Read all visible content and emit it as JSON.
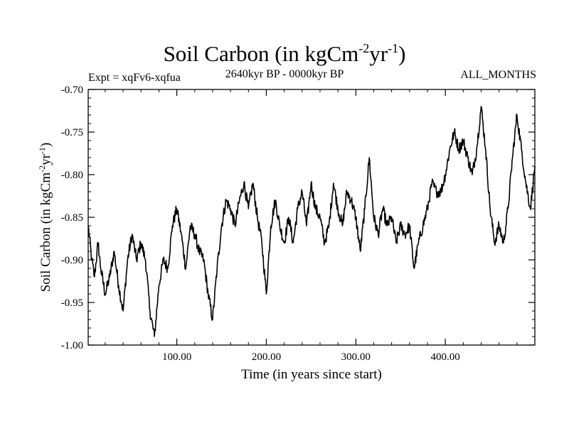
{
  "chart_data": {
    "type": "line",
    "title": {
      "prefix": "Soil Carbon (in kgCm",
      "sup1": "-2",
      "mid": "yr",
      "sup2": "-1",
      "suffix": ")"
    },
    "experiment_label": "Expt = xqFv6-xqfua",
    "period_label": "2640kyr BP - 0000kyr BP",
    "months_label": "ALL_MONTHS",
    "xlabel": "Time (in years since start)",
    "ylabel": {
      "prefix": "Soil Carbon (in kgCm",
      "sup1": "-2",
      "mid": "yr",
      "sup2": "-1",
      "suffix": ")"
    },
    "xlim": [
      1,
      500
    ],
    "ylim": [
      -1.0,
      -0.7
    ],
    "x_ticks": [
      {
        "value": 100,
        "label": "100.00"
      },
      {
        "value": 200,
        "label": "200.00"
      },
      {
        "value": 300,
        "label": "300.00"
      },
      {
        "value": 400,
        "label": "400.00"
      }
    ],
    "y_ticks": [
      {
        "value": -0.7,
        "label": "-0.70"
      },
      {
        "value": -0.75,
        "label": "-0.75"
      },
      {
        "value": -0.8,
        "label": "-0.80"
      },
      {
        "value": -0.85,
        "label": "-0.85"
      },
      {
        "value": -0.9,
        "label": "-0.90"
      },
      {
        "value": -0.95,
        "label": "-0.95"
      },
      {
        "value": -1.0,
        "label": "-1.00"
      }
    ],
    "line_color": "#000000",
    "series": [
      {
        "name": "Soil Carbon",
        "x": [
          1,
          5,
          8,
          12,
          15,
          20,
          25,
          30,
          35,
          40,
          45,
          50,
          55,
          60,
          65,
          70,
          75,
          80,
          85,
          90,
          95,
          100,
          105,
          110,
          115,
          120,
          125,
          130,
          135,
          140,
          145,
          150,
          155,
          160,
          165,
          170,
          175,
          180,
          185,
          190,
          195,
          200,
          205,
          210,
          215,
          220,
          225,
          230,
          235,
          240,
          245,
          250,
          255,
          260,
          265,
          270,
          275,
          280,
          285,
          290,
          295,
          300,
          305,
          310,
          315,
          320,
          325,
          330,
          335,
          340,
          345,
          350,
          355,
          360,
          365,
          370,
          375,
          380,
          385,
          390,
          395,
          400,
          405,
          410,
          415,
          420,
          425,
          430,
          435,
          440,
          445,
          450,
          455,
          460,
          465,
          470,
          475,
          480,
          485,
          490,
          495,
          500
        ],
        "y": [
          -0.86,
          -0.9,
          -0.92,
          -0.88,
          -0.91,
          -0.94,
          -0.92,
          -0.89,
          -0.93,
          -0.96,
          -0.9,
          -0.87,
          -0.9,
          -0.88,
          -0.9,
          -0.96,
          -0.99,
          -0.93,
          -0.9,
          -0.91,
          -0.86,
          -0.84,
          -0.87,
          -0.91,
          -0.86,
          -0.87,
          -0.89,
          -0.9,
          -0.94,
          -0.97,
          -0.91,
          -0.86,
          -0.83,
          -0.84,
          -0.86,
          -0.83,
          -0.81,
          -0.84,
          -0.81,
          -0.85,
          -0.88,
          -0.94,
          -0.86,
          -0.83,
          -0.86,
          -0.88,
          -0.85,
          -0.88,
          -0.84,
          -0.82,
          -0.86,
          -0.81,
          -0.84,
          -0.85,
          -0.88,
          -0.86,
          -0.81,
          -0.84,
          -0.86,
          -0.82,
          -0.83,
          -0.85,
          -0.89,
          -0.84,
          -0.78,
          -0.85,
          -0.87,
          -0.84,
          -0.86,
          -0.85,
          -0.88,
          -0.86,
          -0.87,
          -0.86,
          -0.91,
          -0.88,
          -0.86,
          -0.84,
          -0.81,
          -0.82,
          -0.82,
          -0.8,
          -0.77,
          -0.75,
          -0.77,
          -0.76,
          -0.78,
          -0.8,
          -0.77,
          -0.72,
          -0.77,
          -0.84,
          -0.88,
          -0.86,
          -0.88,
          -0.84,
          -0.78,
          -0.73,
          -0.77,
          -0.81,
          -0.84,
          -0.79
        ]
      }
    ]
  }
}
